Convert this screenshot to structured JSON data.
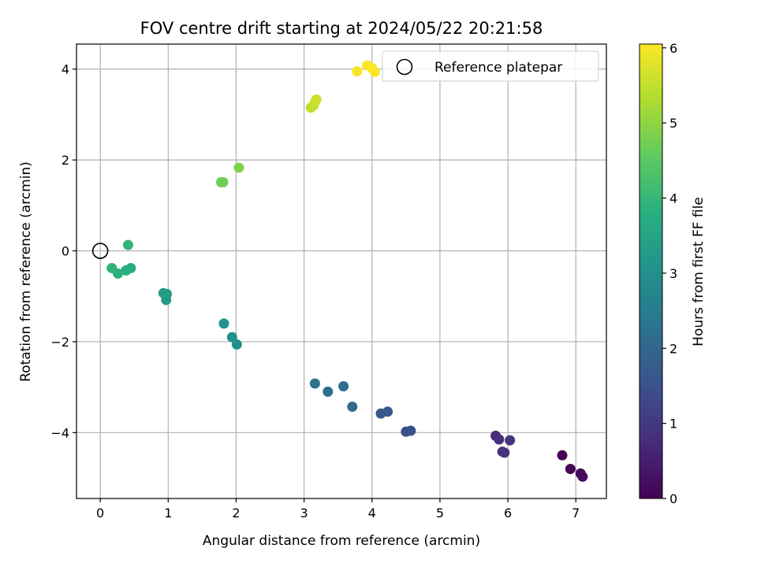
{
  "chart_data": {
    "type": "scatter",
    "title": "FOV centre drift starting at 2024/05/22 20:21:58",
    "xlabel": "Angular distance from reference (arcmin)",
    "ylabel": "Rotation from reference (arcmin)",
    "xlim": [
      -0.35,
      7.45
    ],
    "ylim": [
      -5.45,
      4.55
    ],
    "xticks": [
      0,
      1,
      2,
      3,
      4,
      5,
      6,
      7
    ],
    "yticks": [
      -4,
      -2,
      0,
      2,
      4
    ],
    "xtick_labels": [
      "0",
      "1",
      "2",
      "3",
      "4",
      "5",
      "6",
      "7"
    ],
    "ytick_labels": [
      "−4",
      "−2",
      "0",
      "2",
      "4"
    ],
    "grid": true,
    "colormap": "viridis",
    "colorbar": {
      "label": "Hours from first FF file",
      "range": [
        0,
        6.05
      ],
      "ticks": [
        0,
        1,
        2,
        3,
        4,
        5,
        6
      ],
      "tick_labels": [
        "0",
        "1",
        "2",
        "3",
        "4",
        "5",
        "6"
      ]
    },
    "legend": {
      "position": "top-right",
      "entries": [
        {
          "label": "Reference platepar",
          "marker": "open-circle"
        }
      ]
    },
    "reference_point": {
      "x": 0,
      "y": 0
    },
    "points": [
      {
        "x": 6.8,
        "y": -4.5,
        "hours": 0.0
      },
      {
        "x": 6.92,
        "y": -4.8,
        "hours": 0.05
      },
      {
        "x": 7.07,
        "y": -4.9,
        "hours": 0.1
      },
      {
        "x": 7.1,
        "y": -4.97,
        "hours": 0.15
      },
      {
        "x": 5.82,
        "y": -4.07,
        "hours": 0.75
      },
      {
        "x": 5.87,
        "y": -4.15,
        "hours": 0.8
      },
      {
        "x": 5.92,
        "y": -4.42,
        "hours": 0.85
      },
      {
        "x": 5.95,
        "y": -4.44,
        "hours": 0.88
      },
      {
        "x": 6.03,
        "y": -4.17,
        "hours": 0.92
      },
      {
        "x": 4.5,
        "y": -3.98,
        "hours": 1.45
      },
      {
        "x": 4.57,
        "y": -3.96,
        "hours": 1.5
      },
      {
        "x": 4.13,
        "y": -3.58,
        "hours": 1.65
      },
      {
        "x": 4.23,
        "y": -3.54,
        "hours": 1.7
      },
      {
        "x": 3.71,
        "y": -3.43,
        "hours": 2.1
      },
      {
        "x": 3.58,
        "y": -2.98,
        "hours": 2.15
      },
      {
        "x": 3.35,
        "y": -3.1,
        "hours": 2.2
      },
      {
        "x": 3.16,
        "y": -2.92,
        "hours": 2.3
      },
      {
        "x": 2.01,
        "y": -2.06,
        "hours": 3.0
      },
      {
        "x": 1.94,
        "y": -1.9,
        "hours": 3.05
      },
      {
        "x": 1.82,
        "y": -1.6,
        "hours": 3.1
      },
      {
        "x": 0.97,
        "y": -1.08,
        "hours": 3.25
      },
      {
        "x": 0.98,
        "y": -0.95,
        "hours": 3.3
      },
      {
        "x": 0.93,
        "y": -0.93,
        "hours": 3.35
      },
      {
        "x": 0.45,
        "y": -0.38,
        "hours": 3.75
      },
      {
        "x": 0.38,
        "y": -0.43,
        "hours": 3.8
      },
      {
        "x": 0.26,
        "y": -0.5,
        "hours": 3.85
      },
      {
        "x": 0.17,
        "y": -0.38,
        "hours": 3.9
      },
      {
        "x": 0.41,
        "y": 0.13,
        "hours": 3.95
      },
      {
        "x": 1.78,
        "y": 1.51,
        "hours": 4.65
      },
      {
        "x": 1.81,
        "y": 1.51,
        "hours": 4.7
      },
      {
        "x": 2.04,
        "y": 1.83,
        "hours": 4.85
      },
      {
        "x": 3.1,
        "y": 3.15,
        "hours": 5.5
      },
      {
        "x": 3.14,
        "y": 3.2,
        "hours": 5.52
      },
      {
        "x": 3.16,
        "y": 3.27,
        "hours": 5.55
      },
      {
        "x": 3.18,
        "y": 3.33,
        "hours": 5.58
      },
      {
        "x": 3.78,
        "y": 3.95,
        "hours": 6.0
      },
      {
        "x": 3.93,
        "y": 4.08,
        "hours": 6.02
      },
      {
        "x": 4.0,
        "y": 4.02,
        "hours": 6.03
      },
      {
        "x": 4.04,
        "y": 3.94,
        "hours": 6.05
      }
    ]
  }
}
